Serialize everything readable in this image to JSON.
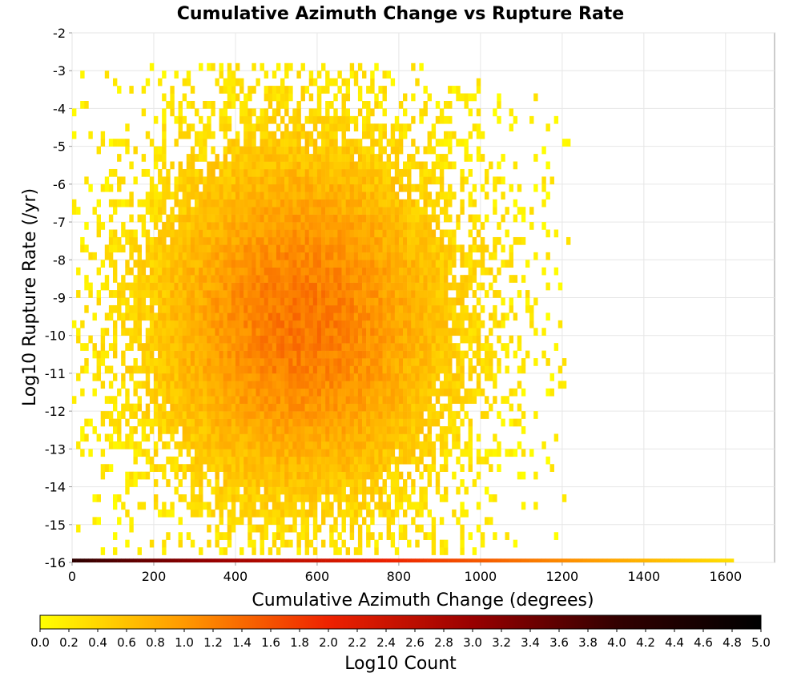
{
  "chart_data": {
    "type": "heatmap",
    "title": "Cumulative Azimuth Change vs Rupture Rate",
    "xlabel": "Cumulative Azimuth Change (degrees)",
    "ylabel": "Log10 Rupture Rate (/yr)",
    "xlim": [
      0,
      1720
    ],
    "ylim": [
      -16,
      -2
    ],
    "x_ticks": [
      0,
      200,
      400,
      600,
      800,
      1000,
      1200,
      1400,
      1600
    ],
    "y_ticks": [
      -2,
      -3,
      -4,
      -5,
      -6,
      -7,
      -8,
      -9,
      -10,
      -11,
      -12,
      -13,
      -14,
      -15,
      -16
    ],
    "x_bin_width": 10,
    "y_bin_width": 0.2,
    "grid": true,
    "colorbar": {
      "label": "Log10 Count",
      "min": 0.0,
      "max": 5.0,
      "ticks": [
        "0.0",
        "0.2",
        "0.4",
        "0.6",
        "0.8",
        "1.0",
        "1.2",
        "1.4",
        "1.6",
        "1.8",
        "2.0",
        "2.2",
        "2.4",
        "2.6",
        "2.8",
        "3.0",
        "3.2",
        "3.4",
        "3.6",
        "3.8",
        "4.0",
        "4.2",
        "4.4",
        "4.6",
        "4.8",
        "5.0"
      ],
      "colors": [
        "#ffff00",
        "#ff9900",
        "#ee2200",
        "#990000",
        "#330000",
        "#000000"
      ]
    },
    "distribution": {
      "center_x": 560,
      "center_y": -9.6,
      "peak_log10_count": 1.3,
      "edge_log10_count": 0.1,
      "x_range": [
        0,
        1220
      ],
      "y_range": [
        -15.8,
        -3.0
      ]
    },
    "floor_row": {
      "y": -16,
      "x_range": [
        0,
        1620
      ],
      "log10_count_start": 4.1,
      "log10_count_end": 0.3
    }
  }
}
